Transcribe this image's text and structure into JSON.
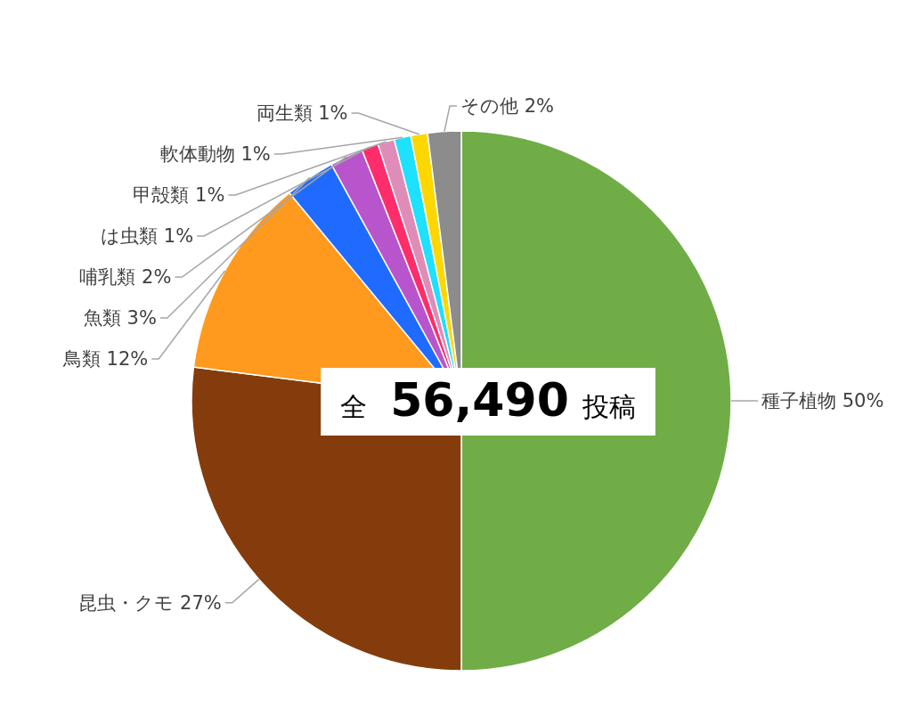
{
  "chart_data": {
    "type": "pie",
    "categories": [
      "種子植物",
      "昆虫・クモ",
      "鳥類",
      "魚類",
      "哺乳類",
      "は虫類",
      "甲殻類",
      "軟体動物",
      "両生類",
      "その他"
    ],
    "values": [
      50,
      27,
      12,
      3,
      2,
      1,
      1,
      1,
      1,
      2
    ],
    "value_labels": [
      "50%",
      "27%",
      "12%",
      "3%",
      "2%",
      "1%",
      "1%",
      "1%",
      "1%",
      "2%"
    ],
    "colors": [
      "#70ad47",
      "#843c0c",
      "#ff9a1e",
      "#1f6bff",
      "#b855cc",
      "#ff2d6b",
      "#e08cb8",
      "#1ee0ff",
      "#ffd700",
      "#8c8c8c"
    ],
    "annotations": [
      "全 56,490 投稿"
    ]
  }
}
